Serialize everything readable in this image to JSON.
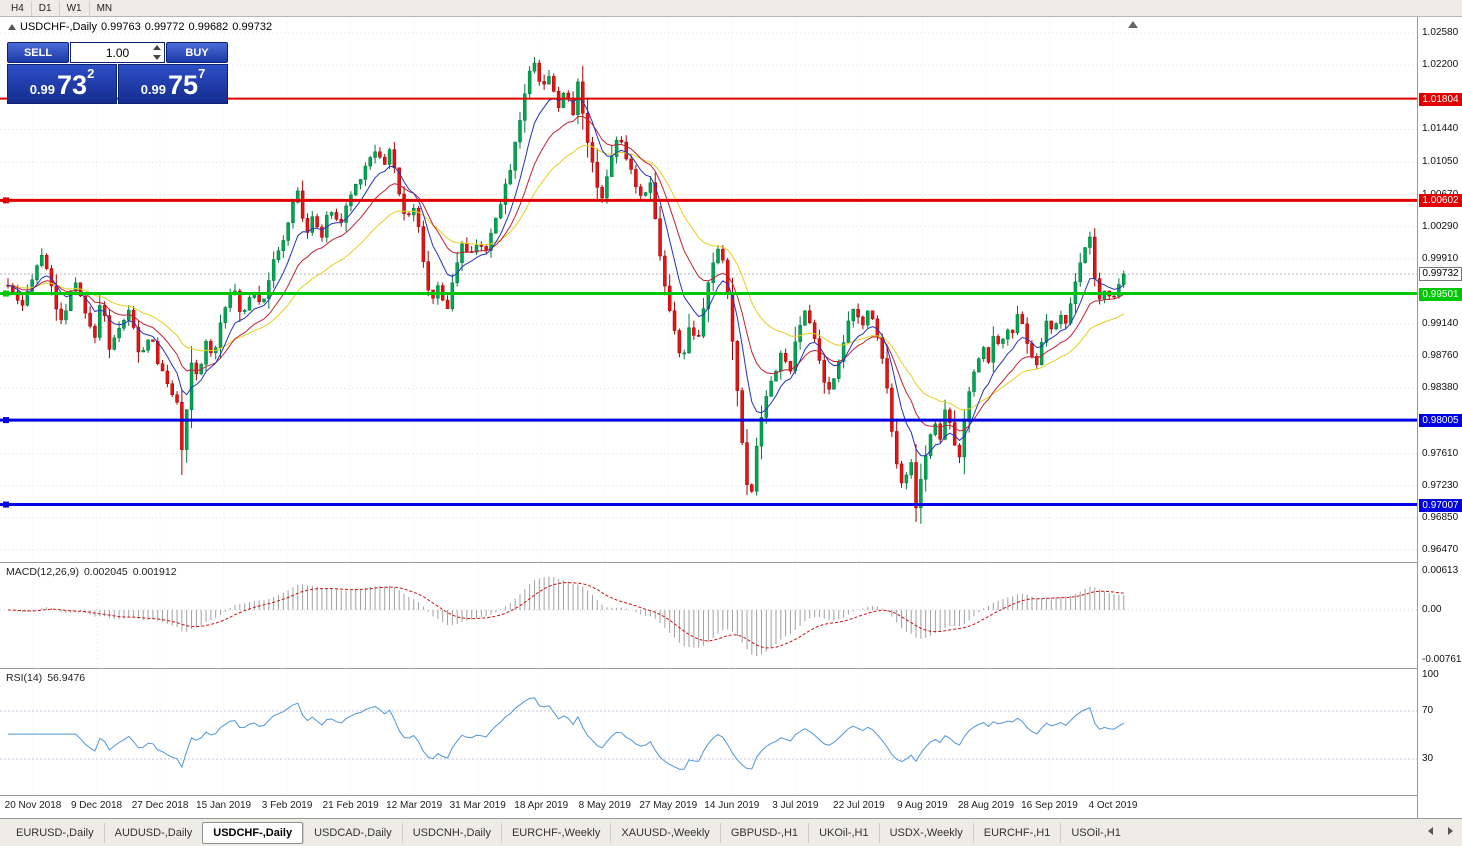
{
  "window": {
    "timeframes": [
      "H4",
      "D1",
      "W1",
      "MN"
    ]
  },
  "chart": {
    "title": "USDCHF-,Daily",
    "open": "0.99763",
    "high": "0.99772",
    "low": "0.99682",
    "close": "0.99732"
  },
  "trade_panel": {
    "sell_label": "SELL",
    "buy_label": "BUY",
    "volume": "1.00",
    "sell_quote": {
      "prefix": "0.99",
      "big": "73",
      "sup": "2"
    },
    "buy_quote": {
      "prefix": "0.99",
      "big": "75",
      "sup": "7"
    }
  },
  "indicators": {
    "macd": {
      "name": "MACD(12,26,9)",
      "main_value": "0.002045",
      "signal_value": "0.001912",
      "axis": [
        "0.00613",
        "0.00",
        "-0.00761"
      ]
    },
    "rsi": {
      "name": "RSI(14)",
      "value": "56.9476",
      "axis": [
        "100",
        "70",
        "30"
      ],
      "levels": [
        70,
        30
      ]
    }
  },
  "tabs": {
    "items": [
      {
        "label": "EURUSD-,Daily",
        "active": false
      },
      {
        "label": "AUDUSD-,Daily",
        "active": false
      },
      {
        "label": "USDCHF-,Daily",
        "active": true
      },
      {
        "label": "USDCAD-,Daily",
        "active": false
      },
      {
        "label": "USDCNH-,Daily",
        "active": false
      },
      {
        "label": "EURCHF-,Weekly",
        "active": false
      },
      {
        "label": "XAUUSD-,Weekly",
        "active": false
      },
      {
        "label": "GBPUSD-,H1",
        "active": false
      },
      {
        "label": "UKOil-,H1",
        "active": false
      },
      {
        "label": "USDX-,Weekly",
        "active": false
      },
      {
        "label": "EURCHF-,H1",
        "active": false
      },
      {
        "label": "USOil-,H1",
        "active": false
      }
    ]
  },
  "chart_data": {
    "type": "candlestick",
    "symbol": "USDCHF",
    "timeframe": "Daily",
    "ylim": [
      0.9647,
      1.0258
    ],
    "y_ticks": [
      "1.02580",
      "1.02200",
      "1.01440",
      "1.01050",
      "1.00670",
      "1.00290",
      "0.99910",
      "0.99140",
      "0.98760",
      "0.98380",
      "0.97610",
      "0.97230",
      "0.96850",
      "0.96470"
    ],
    "x_labels": [
      "20 Nov 2018",
      "9 Dec 2018",
      "27 Dec 2018",
      "15 Jan 2019",
      "3 Feb 2019",
      "21 Feb 2019",
      "12 Mar 2019",
      "31 Mar 2019",
      "18 Apr 2019",
      "8 May 2019",
      "27 May 2019",
      "14 Jun 2019",
      "3 Jul 2019",
      "22 Jul 2019",
      "9 Aug 2019",
      "28 Aug 2019",
      "16 Sep 2019",
      "4 Oct 2019"
    ],
    "levels": [
      {
        "price": 1.01804,
        "color": "#e00000",
        "width": 2,
        "marker": false
      },
      {
        "price": 1.00602,
        "color": "#e00000",
        "width": 3,
        "marker": true
      },
      {
        "price": 0.99501,
        "color": "#00c800",
        "width": 3,
        "marker": true
      },
      {
        "price": 0.98005,
        "color": "#0000e0",
        "width": 3,
        "marker": true
      },
      {
        "price": 0.97007,
        "color": "#0000e0",
        "width": 3,
        "marker": true
      }
    ],
    "current_price": 0.99732,
    "candle_count": 232,
    "bull_color": "#00a651",
    "bull_border": "#00783a",
    "bear_color": "#e01515",
    "bear_border": "#a80000",
    "moving_averages": [
      {
        "period": 8,
        "color": "#2233c0"
      },
      {
        "period": 16,
        "color": "#c02233"
      },
      {
        "period": 30,
        "color": "#e6cf1d"
      }
    ],
    "macd_style": {
      "hist_color": "#a0a0a0",
      "signal_color": "#cc1111"
    },
    "rsi_style": {
      "line_color": "#4f97d7",
      "level_color": "#c6c6dd"
    },
    "price_path": [
      [
        8,
        0.996
      ],
      [
        22,
        0.993
      ],
      [
        34,
        0.9978
      ],
      [
        44,
        0.9998
      ],
      [
        54,
        0.994
      ],
      [
        64,
        0.9915
      ],
      [
        74,
        0.9968
      ],
      [
        84,
        0.993
      ],
      [
        94,
        0.9895
      ],
      [
        102,
        0.995
      ],
      [
        110,
        0.988
      ],
      [
        120,
        0.9915
      ],
      [
        130,
        0.993
      ],
      [
        140,
        0.987
      ],
      [
        150,
        0.9905
      ],
      [
        160,
        0.986
      ],
      [
        170,
        0.9838
      ],
      [
        178,
        0.9822
      ],
      [
        183,
        0.9745
      ],
      [
        190,
        0.9868
      ],
      [
        198,
        0.985
      ],
      [
        206,
        0.9892
      ],
      [
        214,
        0.9878
      ],
      [
        222,
        0.9925
      ],
      [
        232,
        0.9962
      ],
      [
        242,
        0.992
      ],
      [
        252,
        0.9958
      ],
      [
        262,
        0.9938
      ],
      [
        272,
        0.9982
      ],
      [
        282,
        1.0008
      ],
      [
        292,
        1.0052
      ],
      [
        298,
        1.0072
      ],
      [
        306,
        1.0018
      ],
      [
        314,
        1.0042
      ],
      [
        322,
        1.0018
      ],
      [
        330,
        1.0052
      ],
      [
        340,
        1.003
      ],
      [
        350,
        1.0065
      ],
      [
        360,
        1.0088
      ],
      [
        370,
        1.0112
      ],
      [
        378,
        1.0122
      ],
      [
        384,
        1.0098
      ],
      [
        390,
        1.0125
      ],
      [
        398,
        1.0072
      ],
      [
        406,
        1.004
      ],
      [
        414,
        1.0055
      ],
      [
        422,
        1.0002
      ],
      [
        430,
        0.9936
      ],
      [
        438,
        0.9962
      ],
      [
        446,
        0.9925
      ],
      [
        454,
        0.9975
      ],
      [
        462,
        1.0008
      ],
      [
        470,
        0.999
      ],
      [
        478,
        1.0016
      ],
      [
        486,
        0.9996
      ],
      [
        494,
        1.003
      ],
      [
        502,
        1.0062
      ],
      [
        510,
        1.0098
      ],
      [
        518,
        1.0145
      ],
      [
        526,
        1.0195
      ],
      [
        534,
        1.0228
      ],
      [
        542,
        1.0192
      ],
      [
        550,
        1.0208
      ],
      [
        558,
        1.0172
      ],
      [
        566,
        1.0192
      ],
      [
        572,
        1.0152
      ],
      [
        578,
        1.0205
      ],
      [
        586,
        1.014
      ],
      [
        594,
        1.0092
      ],
      [
        602,
        1.0062
      ],
      [
        610,
        1.0108
      ],
      [
        618,
        1.0138
      ],
      [
        626,
        1.0108
      ],
      [
        634,
        1.0085
      ],
      [
        642,
        1.0062
      ],
      [
        650,
        1.0088
      ],
      [
        658,
        1.0012
      ],
      [
        666,
        0.995
      ],
      [
        674,
        0.9906
      ],
      [
        682,
        0.987
      ],
      [
        690,
        0.9912
      ],
      [
        698,
        0.989
      ],
      [
        706,
        0.995
      ],
      [
        714,
        0.9992
      ],
      [
        720,
        1.0006
      ],
      [
        728,
        0.995
      ],
      [
        736,
        0.9852
      ],
      [
        744,
        0.9748
      ],
      [
        750,
        0.9702
      ],
      [
        758,
        0.9782
      ],
      [
        766,
        0.9832
      ],
      [
        774,
        0.9856
      ],
      [
        782,
        0.988
      ],
      [
        790,
        0.9856
      ],
      [
        798,
        0.9906
      ],
      [
        806,
        0.993
      ],
      [
        814,
        0.99
      ],
      [
        822,
        0.9856
      ],
      [
        830,
        0.983
      ],
      [
        838,
        0.987
      ],
      [
        846,
        0.9906
      ],
      [
        854,
        0.9932
      ],
      [
        862,
        0.991
      ],
      [
        870,
        0.9936
      ],
      [
        878,
        0.9898
      ],
      [
        886,
        0.985
      ],
      [
        892,
        0.979
      ],
      [
        898,
        0.9742
      ],
      [
        904,
        0.9716
      ],
      [
        910,
        0.9762
      ],
      [
        916,
        0.97
      ],
      [
        922,
        0.9736
      ],
      [
        928,
        0.9772
      ],
      [
        934,
        0.98
      ],
      [
        940,
        0.978
      ],
      [
        946,
        0.9822
      ],
      [
        952,
        0.979
      ],
      [
        958,
        0.9746
      ],
      [
        964,
        0.9796
      ],
      [
        970,
        0.9836
      ],
      [
        976,
        0.9862
      ],
      [
        982,
        0.989
      ],
      [
        988,
        0.987
      ],
      [
        994,
        0.9902
      ],
      [
        1000,
        0.9882
      ],
      [
        1006,
        0.9916
      ],
      [
        1012,
        0.9896
      ],
      [
        1018,
        0.9926
      ],
      [
        1024,
        0.9906
      ],
      [
        1030,
        0.9882
      ],
      [
        1036,
        0.986
      ],
      [
        1042,
        0.9896
      ],
      [
        1048,
        0.992
      ],
      [
        1054,
        0.99
      ],
      [
        1060,
        0.993
      ],
      [
        1066,
        0.9912
      ],
      [
        1072,
        0.9946
      ],
      [
        1078,
        0.9972
      ],
      [
        1084,
        1.0002
      ],
      [
        1089,
        1.0022
      ],
      [
        1094,
        0.9976
      ],
      [
        1100,
        0.994
      ],
      [
        1106,
        0.9956
      ],
      [
        1112,
        0.9936
      ],
      [
        1118,
        0.996
      ],
      [
        1125,
        0.9973
      ]
    ]
  }
}
